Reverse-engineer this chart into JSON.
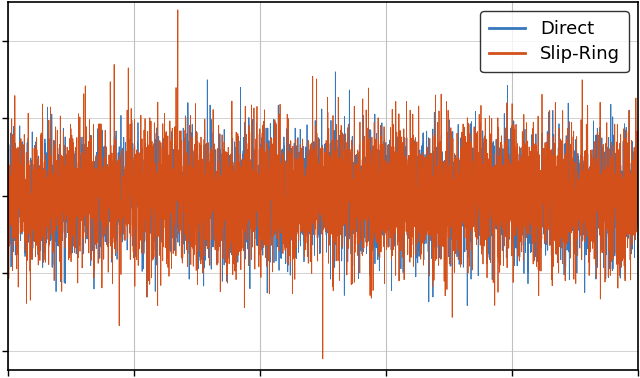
{
  "title": "",
  "xlabel": "",
  "ylabel": "",
  "legend_labels": [
    "Direct",
    "Slip-Ring"
  ],
  "color_direct": "#3777bc",
  "color_slipring": "#d4501a",
  "n_points": 5000,
  "seed_direct": 7,
  "seed_slipring": 99,
  "xlim": [
    0,
    5000
  ],
  "ylim": [
    -4.5,
    5.0
  ],
  "grid_color": "#c0c0c0",
  "linewidth": 0.6,
  "figsize": [
    6.4,
    3.78
  ],
  "dpi": 100,
  "legend_fontsize": 13,
  "legend_loc": "upper right",
  "xtick_positions": [
    0,
    1000,
    2000,
    3000,
    4000,
    5000
  ],
  "ytick_positions": [
    -4,
    -2,
    0,
    2,
    4
  ],
  "background_color": "#ffffff",
  "fig_background_color": "#ffffff",
  "spine_color": "#000000",
  "spike_direct_idx": 2600,
  "spike_direct_val": 3.2,
  "spike_slipring_idx1": 1350,
  "spike_slipring_val1": 4.8,
  "spike_slipring_idx2": 2500,
  "spike_slipring_val2": -4.2
}
